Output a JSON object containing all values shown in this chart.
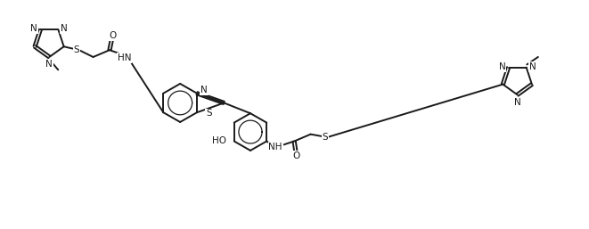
{
  "background_color": "#ffffff",
  "line_color": "#1a1a1a",
  "line_width": 1.4,
  "font_size": 7.5,
  "fig_width": 6.61,
  "fig_height": 2.57,
  "dpi": 100,
  "xlim": [
    0,
    100
  ],
  "ylim": [
    0,
    39
  ]
}
